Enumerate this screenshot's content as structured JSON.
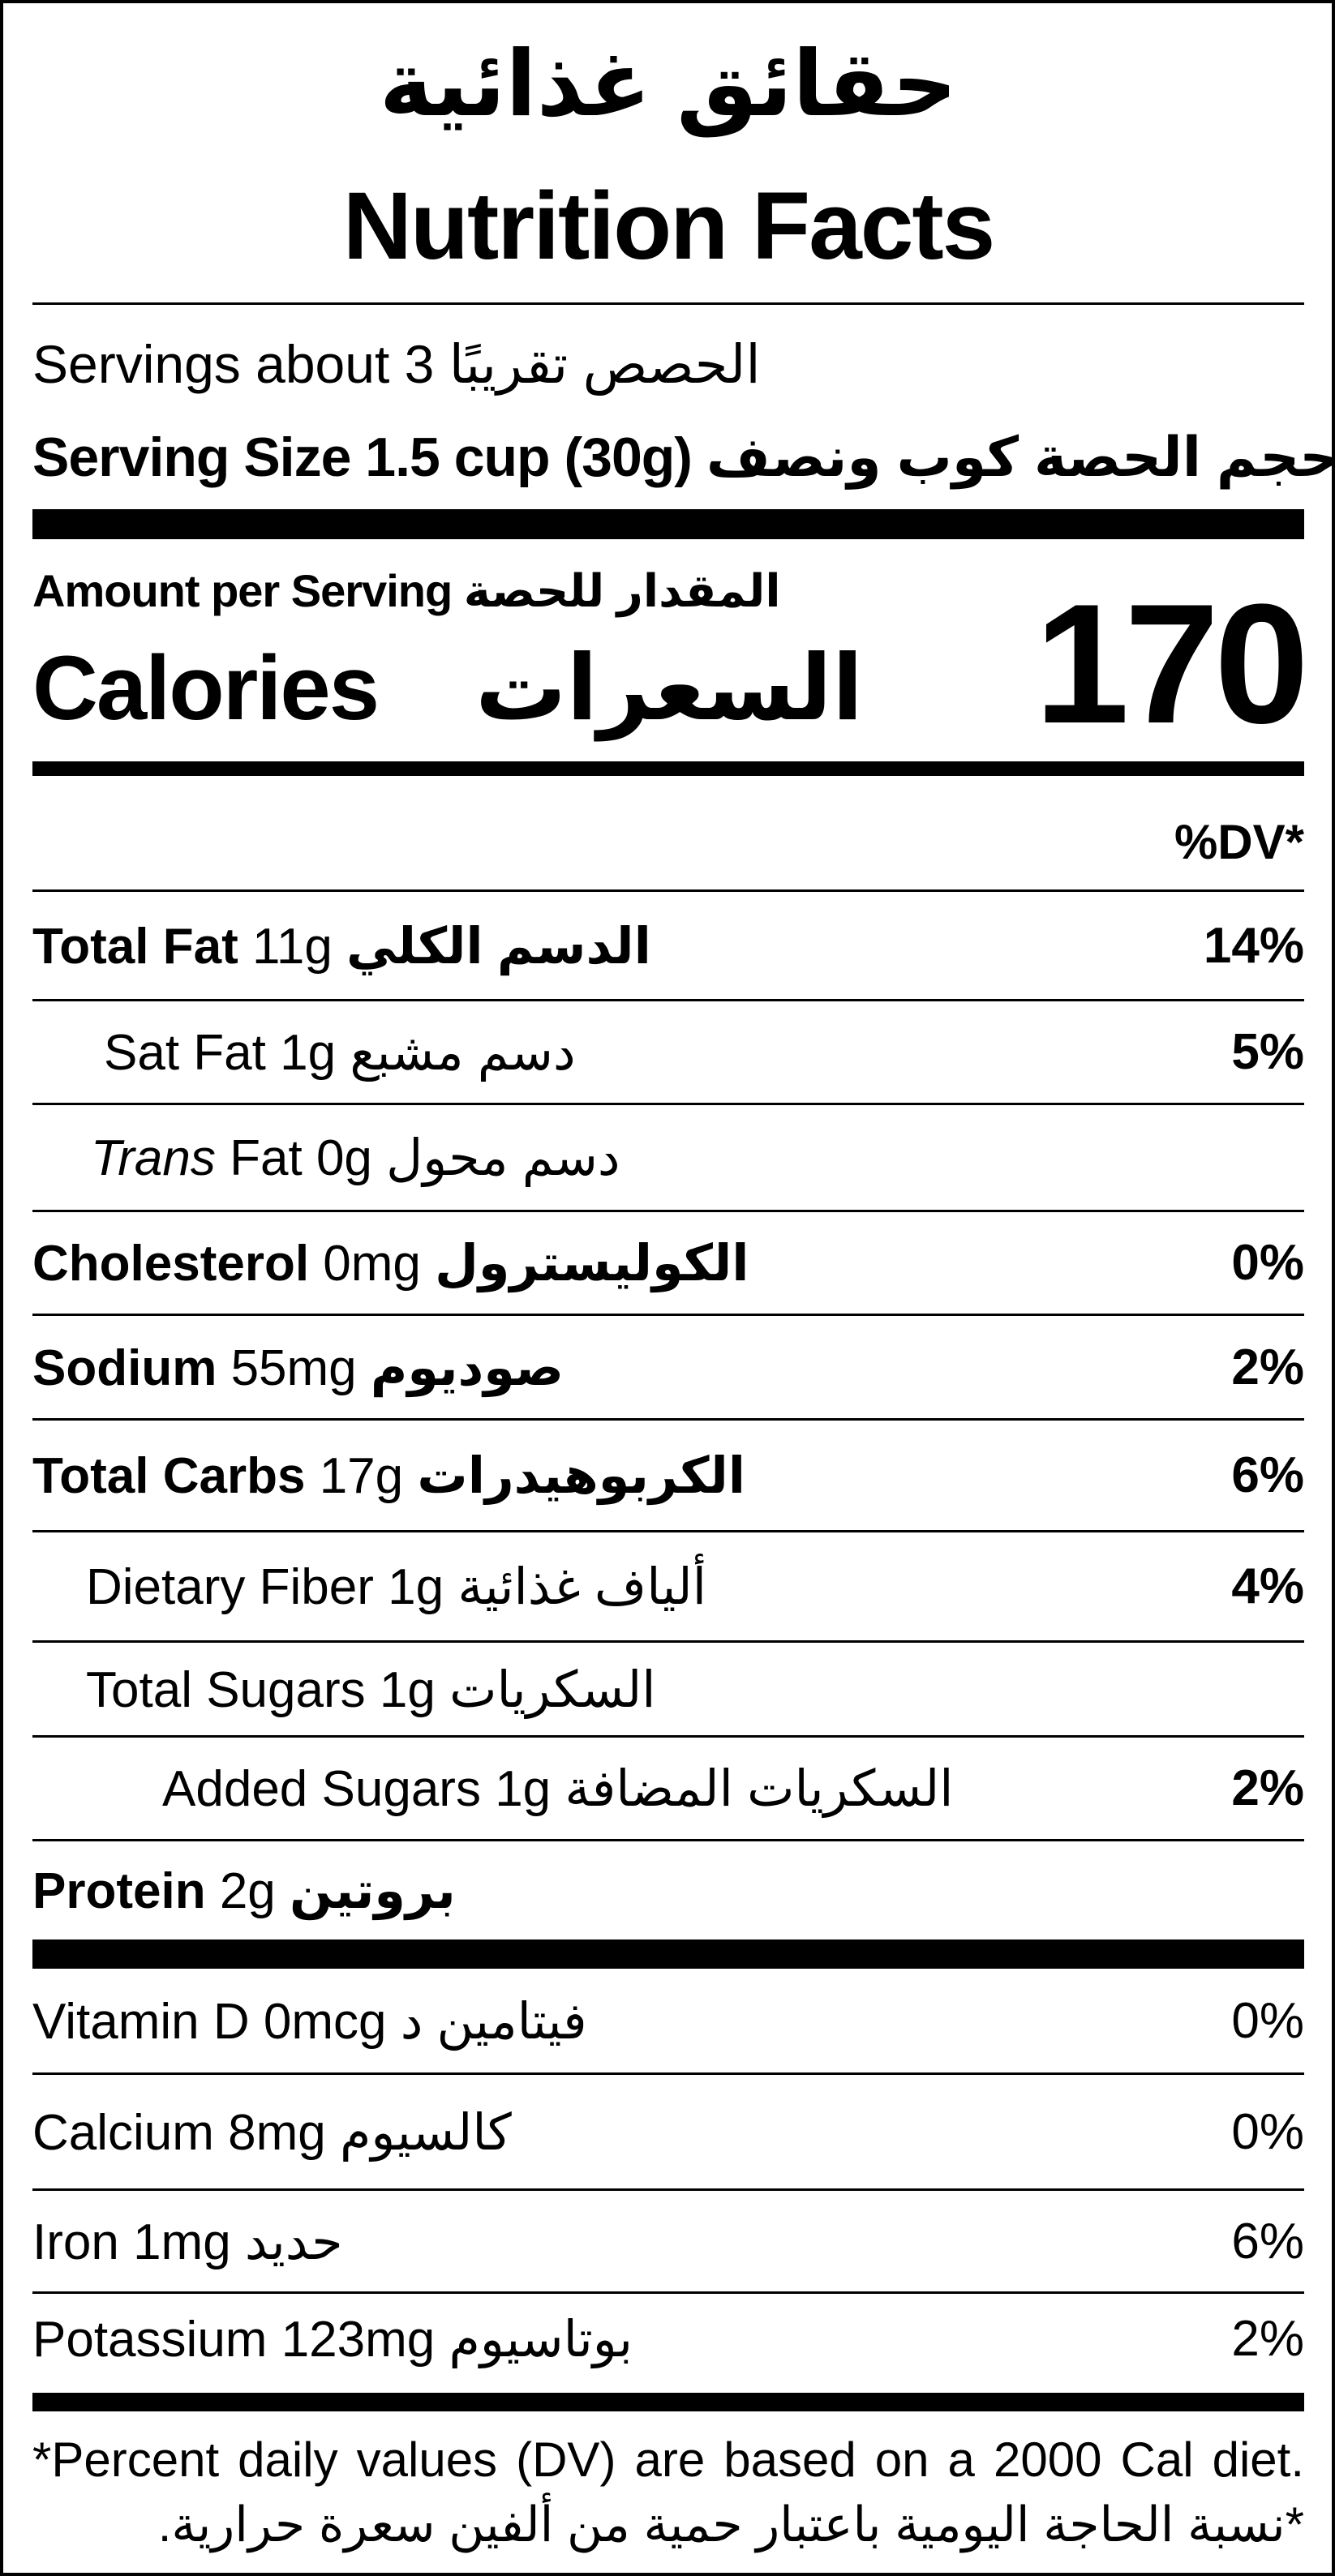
{
  "header": {
    "title_ar": "حقائق غذائية",
    "title_en": "Nutrition Facts"
  },
  "servings": {
    "label_en": "Servings about 3",
    "label_ar": "الحصص تقريبًا"
  },
  "serving_size": {
    "label_en": "Serving Size 1.5 cup (30g)",
    "label_ar": "حجم الحصة كوب ونصف"
  },
  "amount": {
    "label_en": "Amount per Serving",
    "label_ar": "المقدار للحصة"
  },
  "calories": {
    "label_en": "Calories",
    "label_ar": "السعرات",
    "value": "170"
  },
  "dv_header": "%DV*",
  "nutrients": [
    {
      "name": "Total Fat",
      "amount": "11g",
      "ar": "الدسم الكلي",
      "dv": "14%"
    },
    {
      "name": "Sat Fat",
      "amount": "1g",
      "ar": "دسم مشبع",
      "dv": "5%"
    },
    {
      "name": "Trans",
      "name2": "Fat",
      "amount": "0g",
      "ar": "دسم محول",
      "dv": ""
    },
    {
      "name": "Cholesterol",
      "amount": "0mg",
      "ar": "الكوليسترول",
      "dv": "0%"
    },
    {
      "name": "Sodium",
      "amount": "55mg",
      "ar": "صوديوم",
      "dv": "2%"
    },
    {
      "name": "Total Carbs",
      "amount": "17g",
      "ar": "الكربوهيدرات",
      "dv": "6%"
    },
    {
      "name": "Dietary Fiber",
      "amount": "1g",
      "ar": "ألياف غذائية",
      "dv": "4%"
    },
    {
      "name": "Total Sugars",
      "amount": "1g",
      "ar": "السكريات",
      "dv": ""
    },
    {
      "name": "Added Sugars",
      "amount": "1g",
      "ar": "السكريات المضافة",
      "dv": "2%"
    },
    {
      "name": "Protein",
      "amount": "2g",
      "ar": "بروتين",
      "dv": ""
    }
  ],
  "vitamins": [
    {
      "name": "Vitamin D",
      "amount": "0mcg",
      "ar": "فيتامين د",
      "dv": "0%"
    },
    {
      "name": "Calcium",
      "amount": "8mg",
      "ar": "كالسيوم",
      "dv": "0%"
    },
    {
      "name": "Iron",
      "amount": "1mg",
      "ar": "حديد",
      "dv": "6%"
    },
    {
      "name": "Potassium",
      "amount": "123mg",
      "ar": "بوتاسيوم",
      "dv": "2%"
    }
  ],
  "footnote": {
    "en": "*Percent daily values (DV) are based on a 2000 Cal diet.",
    "ar": "*نسبة الحاجة اليومية باعتبار حمية من ألفين سعرة حرارية."
  }
}
